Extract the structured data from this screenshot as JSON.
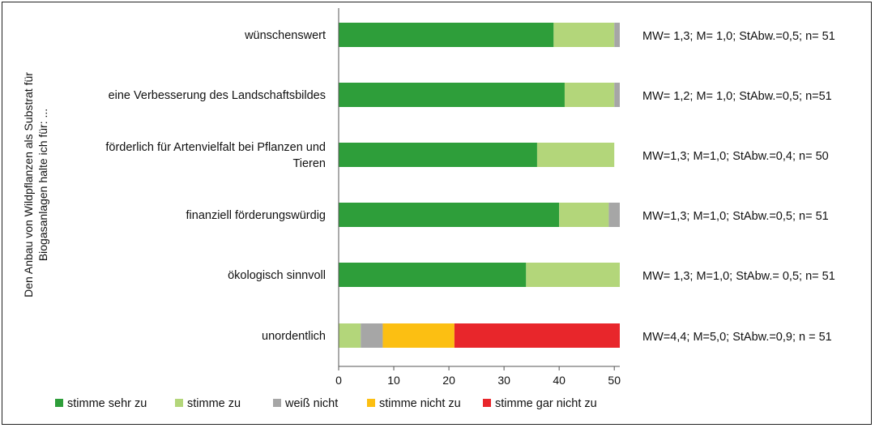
{
  "chart_data": {
    "type": "bar",
    "orientation": "horizontal",
    "stacked": true,
    "ylabel_line1": "Den Anbau von Wildpflanzen als Substrat für",
    "ylabel_line2": "Biogasanlagen halte ich für: ...",
    "xlim": [
      0,
      51
    ],
    "xticks": [
      "0",
      "10",
      "20",
      "30",
      "40",
      "50"
    ],
    "grid": false,
    "legend_position": "bottom",
    "colors": [
      "#2e9e3a",
      "#b3d67a",
      "#a6a6a6",
      "#fcbf12",
      "#e8262b"
    ],
    "series": [
      {
        "name": "stimme sehr zu",
        "values": [
          39,
          41,
          36,
          40,
          34,
          0
        ]
      },
      {
        "name": "stimme zu",
        "values": [
          11,
          9,
          14,
          9,
          17,
          4
        ]
      },
      {
        "name": "weiß nicht",
        "values": [
          1,
          1,
          0,
          2,
          0,
          4
        ]
      },
      {
        "name": "stimme nicht zu",
        "values": [
          0,
          0,
          0,
          0,
          0,
          13
        ]
      },
      {
        "name": "stimme gar nicht zu",
        "values": [
          0,
          0,
          0,
          0,
          0,
          30
        ]
      }
    ],
    "categories": [
      {
        "lines": [
          "wünschenswert"
        ],
        "stat": "MW= 1,3; M= 1,0; StAbw.=0,5; n= 51"
      },
      {
        "lines": [
          "eine Verbesserung des Landschaftsbildes"
        ],
        "stat": "MW= 1,2; M= 1,0; StAbw.=0,5; n=51"
      },
      {
        "lines": [
          "förderlich für Artenvielfalt bei Pflanzen und",
          "Tieren"
        ],
        "stat": "MW=1,3; M=1,0;  StAbw.=0,4; n= 50"
      },
      {
        "lines": [
          "finanziell  förderungswürdig"
        ],
        "stat": "MW=1,3; M=1,0; StAbw.=0,5; n= 51"
      },
      {
        "lines": [
          "ökologisch sinnvoll"
        ],
        "stat": "MW= 1,3; M=1,0; StAbw.= 0,5; n= 51"
      },
      {
        "lines": [
          "unordentlich"
        ],
        "stat": "MW=4,4; M=5,0; StAbw.=0,9; n = 51"
      }
    ]
  }
}
